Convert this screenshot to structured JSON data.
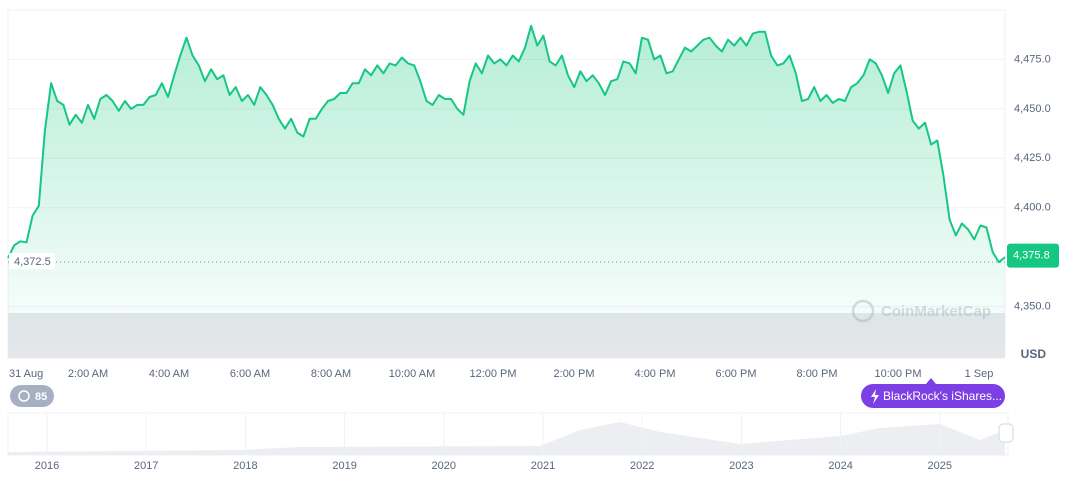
{
  "chart_data": {
    "type": "line",
    "series": [
      {
        "name": "Price",
        "color": "#16c784",
        "values": [
          4374.5,
          4381,
          4383,
          4382.5,
          4396,
          4401,
          4439,
          4463,
          4454,
          4452,
          4442,
          4447,
          4443,
          4452,
          4445,
          4455,
          4457,
          4454,
          4449,
          4454,
          4450,
          4452,
          4452,
          4456,
          4457,
          4463,
          4456,
          4467,
          4477,
          4486,
          4477,
          4472,
          4464,
          4470,
          4465,
          4467,
          4457,
          4461,
          4454,
          4457,
          4452,
          4461,
          4457,
          4452,
          4445,
          4440,
          4445,
          4438,
          4436,
          4445,
          4445,
          4450,
          4454,
          4455,
          4458,
          4458,
          4463,
          4463,
          4470,
          4467,
          4472,
          4468,
          4473,
          4472,
          4476,
          4473,
          4472,
          4464,
          4454,
          4452,
          4457,
          4455,
          4455,
          4450,
          4447,
          4464,
          4473,
          4468,
          4477,
          4473,
          4475,
          4472,
          4477,
          4474,
          4481,
          4492,
          4482,
          4487,
          4474,
          4472,
          4477,
          4467,
          4461,
          4469,
          4464,
          4467,
          4463,
          4457,
          4464,
          4465,
          4474,
          4473,
          4468,
          4486,
          4485,
          4475,
          4477,
          4468,
          4469,
          4475,
          4481,
          4479,
          4482,
          4485,
          4486,
          4482,
          4479,
          4485,
          4482,
          4486,
          4482,
          4488,
          4489,
          4489,
          4477,
          4472,
          4473,
          4477,
          4468,
          4454,
          4455,
          4461,
          4454,
          4457,
          4453,
          4455,
          4454,
          4461,
          4463,
          4467,
          4475,
          4473,
          4467,
          4458,
          4468,
          4472,
          4459,
          4444,
          4440,
          4443,
          4432,
          4434,
          4416,
          4394,
          4386,
          4392,
          4389,
          4384,
          4391,
          4390,
          4377.5,
          4372.5,
          4375
        ]
      }
    ],
    "x_labels": [
      "31 Aug",
      "2:00 AM",
      "4:00 AM",
      "6:00 AM",
      "8:00 AM",
      "10:00 AM",
      "12:00 PM",
      "2:00 PM",
      "4:00 PM",
      "6:00 PM",
      "8:00 PM",
      "10:00 PM",
      "1 Sep"
    ],
    "ylim": [
      4324,
      4500
    ],
    "yticks": [
      {
        "value": 4350,
        "label": "4,350.0"
      },
      {
        "value": 4400,
        "label": "4,400.0"
      },
      {
        "value": 4425,
        "label": "4,425.0"
      },
      {
        "value": 4450,
        "label": "4,450.0"
      },
      {
        "value": 4475,
        "label": "4,475.0"
      }
    ],
    "grid": true,
    "reference_line": {
      "value": 4372.5,
      "label": "4,372.5"
    },
    "last_price": {
      "value": 4375.8,
      "label": "4,375.8"
    },
    "currency": "USD",
    "watermark": "CoinMarketCap",
    "badge": "85",
    "event": "BlackRock's iShares...",
    "navigator_years": [
      "2016",
      "2017",
      "2018",
      "2019",
      "2020",
      "2021",
      "2022",
      "2023",
      "2024",
      "2025"
    ]
  }
}
